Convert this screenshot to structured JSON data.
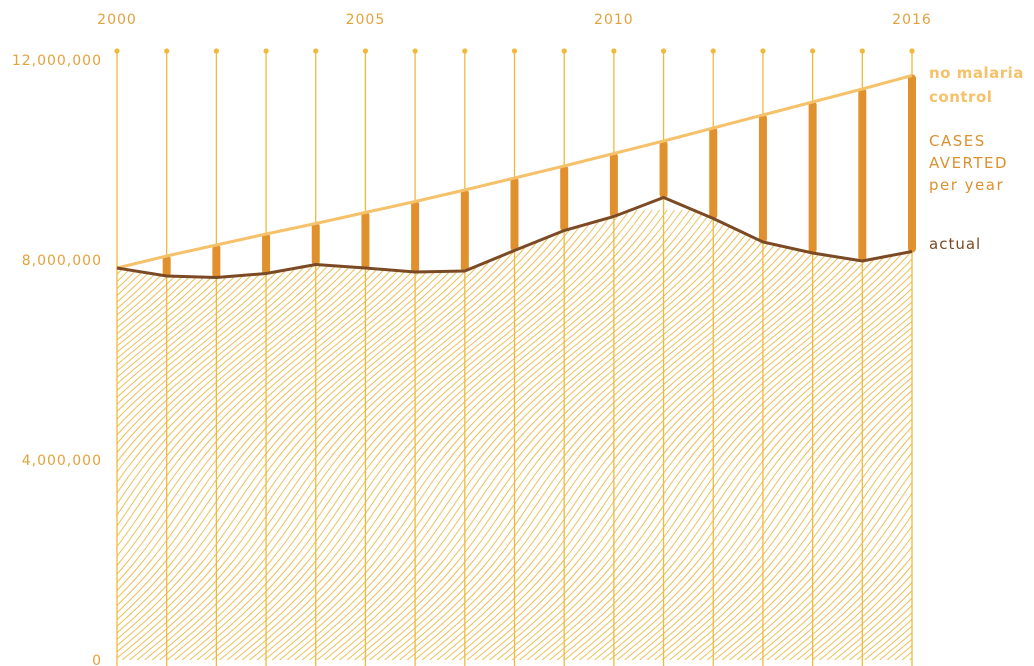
{
  "colors": {
    "no_control": "#f5c16a",
    "actual": "#7b4a24",
    "averted": "#e0912d",
    "grid": "#f1b93a",
    "hatch": "#ecc05a",
    "tick_text": "#e3a23c",
    "avert_text": "#dc9030"
  },
  "labels": {
    "no_malaria_line1": "no malaria",
    "no_malaria_line2": "control",
    "cases_line1": "CASES",
    "cases_line2": "AVERTED",
    "cases_line3": "per year",
    "actual": "actual"
  },
  "chart_data": {
    "type": "area",
    "x": [
      2000,
      2001,
      2002,
      2003,
      2004,
      2005,
      2006,
      2007,
      2008,
      2009,
      2010,
      2011,
      2012,
      2013,
      2014,
      2015,
      2016
    ],
    "x_tick_labels": [
      {
        "x": 2000,
        "label": "2000"
      },
      {
        "x": 2005,
        "label": "2005"
      },
      {
        "x": 2010,
        "label": "2010"
      },
      {
        "x": 2016,
        "label": "2016"
      }
    ],
    "y_tick_labels": [
      {
        "y": 0,
        "label": "0"
      },
      {
        "y": 4000000,
        "label": "4,000,000"
      },
      {
        "y": 8000000,
        "label": "8,000,000"
      },
      {
        "y": 12000000,
        "label": "12,000,000"
      }
    ],
    "ylim": [
      0,
      12000000
    ],
    "series": [
      {
        "name": "no malaria control",
        "values": [
          7840000,
          8080000,
          8300000,
          8520000,
          8730000,
          8950000,
          9170000,
          9400000,
          9640000,
          9880000,
          10130000,
          10380000,
          10640000,
          10900000,
          11160000,
          11420000,
          11690000
        ]
      },
      {
        "name": "actual",
        "values": [
          7840000,
          7680000,
          7650000,
          7730000,
          7910000,
          7840000,
          7760000,
          7780000,
          8190000,
          8590000,
          8870000,
          9250000,
          8830000,
          8360000,
          8140000,
          7980000,
          8170000
        ]
      }
    ],
    "cases_averted_bars_from_year": 2001
  }
}
